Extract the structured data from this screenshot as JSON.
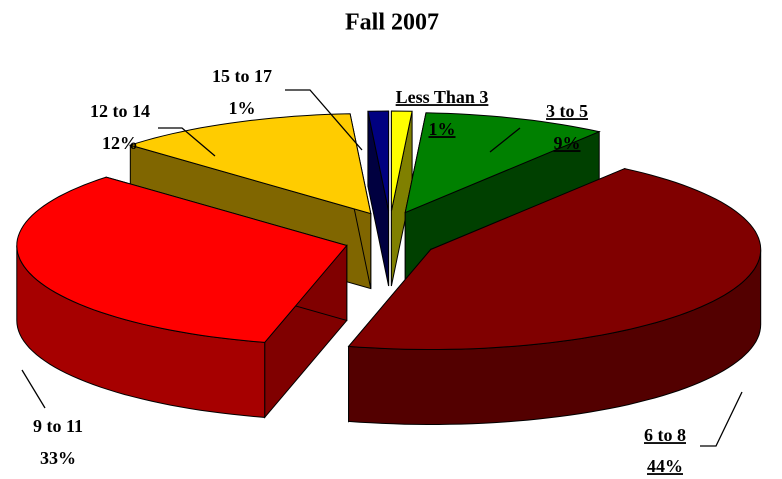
{
  "chart_data": {
    "type": "pie",
    "title": "Fall 2007",
    "categories": [
      "Less Than 3",
      "3 to 5",
      "6 to 8",
      "9 to 11",
      "12 to 14",
      "15 to 17"
    ],
    "values": [
      1,
      9,
      44,
      33,
      12,
      1
    ],
    "value_labels": [
      "1%",
      "9%",
      "44%",
      "33%",
      "12%",
      "1%"
    ],
    "colors": [
      "#ffff00",
      "#008000",
      "#800000",
      "#ff0000",
      "#ffcc00",
      "#000080"
    ]
  }
}
